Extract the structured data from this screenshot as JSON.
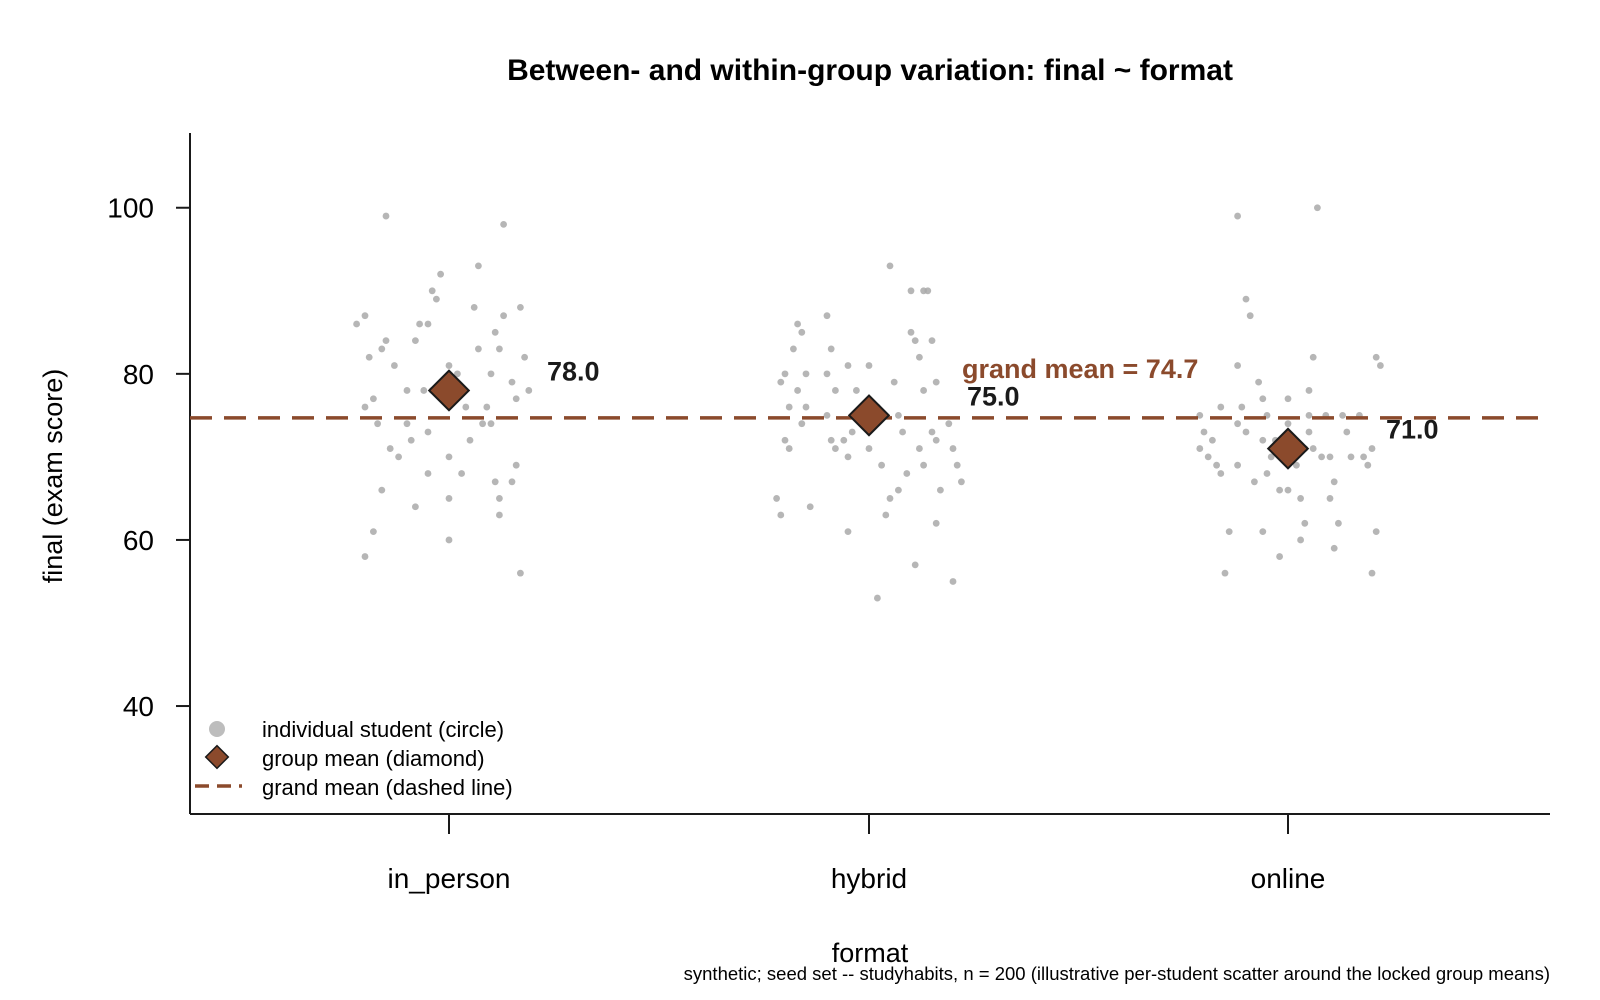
{
  "chart_data": {
    "type": "scatter",
    "title": "Between- and within-group variation: final ~ format",
    "xlabel": "format",
    "ylabel": "final (exam score)",
    "categories": [
      "in_person",
      "hybrid",
      "online"
    ],
    "y_ticks": [
      "40",
      "60",
      "80",
      "100"
    ],
    "ylim": [
      27,
      109
    ],
    "group_means": [
      78.0,
      75.0,
      71.0
    ],
    "group_mean_labels": [
      "78.0",
      "75.0",
      "71.0"
    ],
    "grand_mean": 74.7,
    "grand_mean_label": "grand mean = 74.7",
    "points": [
      [
        [
          -0.2,
          87
        ],
        [
          -0.22,
          86
        ],
        [
          -0.19,
          82
        ],
        [
          -0.18,
          77
        ],
        [
          -0.2,
          76
        ],
        [
          -0.15,
          84
        ],
        [
          -0.16,
          83
        ],
        [
          -0.13,
          81
        ],
        [
          -0.12,
          70
        ],
        [
          -0.14,
          71
        ],
        [
          -0.17,
          74
        ],
        [
          -0.16,
          66
        ],
        [
          -0.18,
          61
        ],
        [
          -0.2,
          58
        ],
        [
          -0.15,
          99
        ],
        [
          -0.1,
          78
        ],
        [
          -0.08,
          84
        ],
        [
          -0.05,
          86
        ],
        [
          -0.06,
          78
        ],
        [
          -0.09,
          72
        ],
        [
          -0.1,
          74
        ],
        [
          -0.08,
          64
        ],
        [
          -0.05,
          68
        ],
        [
          -0.02,
          92
        ],
        [
          -0.04,
          90
        ],
        [
          -0.03,
          89
        ],
        [
          -0.04,
          78
        ],
        [
          -0.05,
          73
        ],
        [
          0.0,
          81
        ],
        [
          0.0,
          70
        ],
        [
          0.02,
          80
        ],
        [
          0.01,
          77
        ],
        [
          0.0,
          65
        ],
        [
          0.0,
          60
        ],
        [
          0.04,
          76
        ],
        [
          0.05,
          72
        ],
        [
          0.03,
          68
        ],
        [
          0.06,
          88
        ],
        [
          0.07,
          83
        ],
        [
          0.08,
          74
        ],
        [
          0.07,
          93
        ],
        [
          0.1,
          80
        ],
        [
          0.11,
          85
        ],
        [
          0.13,
          87
        ],
        [
          0.12,
          83
        ],
        [
          0.11,
          67
        ],
        [
          0.12,
          65
        ],
        [
          0.12,
          63
        ],
        [
          0.1,
          74
        ],
        [
          0.09,
          76
        ],
        [
          0.13,
          98
        ],
        [
          0.15,
          79
        ],
        [
          0.16,
          77
        ],
        [
          0.15,
          67
        ],
        [
          0.17,
          88
        ],
        [
          0.18,
          82
        ],
        [
          0.19,
          78
        ],
        [
          0.17,
          56
        ],
        [
          0.16,
          69
        ],
        [
          -0.07,
          86
        ]
      ],
      [
        [
          -0.2,
          80
        ],
        [
          -0.21,
          79
        ],
        [
          -0.19,
          76
        ],
        [
          -0.2,
          72
        ],
        [
          -0.19,
          71
        ],
        [
          -0.22,
          65
        ],
        [
          -0.21,
          63
        ],
        [
          -0.17,
          86
        ],
        [
          -0.16,
          85
        ],
        [
          -0.18,
          83
        ],
        [
          -0.15,
          80
        ],
        [
          -0.17,
          78
        ],
        [
          -0.15,
          76
        ],
        [
          -0.16,
          74
        ],
        [
          -0.14,
          64
        ],
        [
          -0.1,
          87
        ],
        [
          -0.09,
          83
        ],
        [
          -0.1,
          80
        ],
        [
          -0.08,
          78
        ],
        [
          -0.1,
          75
        ],
        [
          -0.06,
          72
        ],
        [
          -0.08,
          71
        ],
        [
          -0.05,
          70
        ],
        [
          -0.05,
          81
        ],
        [
          -0.03,
          78
        ],
        [
          -0.04,
          73
        ],
        [
          -0.09,
          72
        ],
        [
          -0.05,
          61
        ],
        [
          0.0,
          81
        ],
        [
          0.0,
          71
        ],
        [
          0.02,
          76
        ],
        [
          0.03,
          69
        ],
        [
          0.05,
          65
        ],
        [
          0.04,
          63
        ],
        [
          0.02,
          53
        ],
        [
          0.06,
          79
        ],
        [
          0.07,
          75
        ],
        [
          0.08,
          73
        ],
        [
          0.07,
          66
        ],
        [
          0.09,
          68
        ],
        [
          0.05,
          93
        ],
        [
          0.1,
          85
        ],
        [
          0.11,
          84
        ],
        [
          0.12,
          82
        ],
        [
          0.13,
          78
        ],
        [
          0.12,
          71
        ],
        [
          0.13,
          69
        ],
        [
          0.11,
          57
        ],
        [
          0.1,
          90
        ],
        [
          0.13,
          90
        ],
        [
          0.14,
          90
        ],
        [
          0.15,
          84
        ],
        [
          0.16,
          79
        ],
        [
          0.15,
          73
        ],
        [
          0.16,
          72
        ],
        [
          0.17,
          66
        ],
        [
          0.16,
          62
        ],
        [
          0.2,
          71
        ],
        [
          0.21,
          69
        ],
        [
          0.2,
          55
        ],
        [
          0.19,
          74
        ],
        [
          0.22,
          67
        ]
      ],
      [
        [
          -0.21,
          75
        ],
        [
          -0.2,
          73
        ],
        [
          -0.21,
          71
        ],
        [
          -0.19,
          70
        ],
        [
          -0.18,
          72
        ],
        [
          -0.16,
          76
        ],
        [
          -0.17,
          69
        ],
        [
          -0.16,
          68
        ],
        [
          -0.14,
          61
        ],
        [
          -0.15,
          56
        ],
        [
          -0.12,
          81
        ],
        [
          -0.11,
          76
        ],
        [
          -0.12,
          74
        ],
        [
          -0.1,
          73
        ],
        [
          -0.12,
          69
        ],
        [
          -0.1,
          89
        ],
        [
          -0.09,
          87
        ],
        [
          -0.12,
          99
        ],
        [
          -0.07,
          79
        ],
        [
          -0.06,
          77
        ],
        [
          -0.05,
          75
        ],
        [
          -0.06,
          72
        ],
        [
          -0.08,
          67
        ],
        [
          -0.04,
          70
        ],
        [
          -0.05,
          68
        ],
        [
          -0.06,
          61
        ],
        [
          -0.03,
          72
        ],
        [
          -0.02,
          71
        ],
        [
          -0.02,
          66
        ],
        [
          -0.02,
          58
        ],
        [
          0.0,
          74
        ],
        [
          0.0,
          77
        ],
        [
          0.0,
          70
        ],
        [
          0.0,
          66
        ],
        [
          0.02,
          69
        ],
        [
          0.04,
          71
        ],
        [
          0.05,
          73
        ],
        [
          0.03,
          65
        ],
        [
          0.04,
          62
        ],
        [
          0.03,
          60
        ],
        [
          0.05,
          78
        ],
        [
          0.06,
          82
        ],
        [
          0.05,
          75
        ],
        [
          0.06,
          71
        ],
        [
          0.08,
          70
        ],
        [
          0.07,
          100
        ],
        [
          0.09,
          75
        ],
        [
          0.1,
          70
        ],
        [
          0.11,
          67
        ],
        [
          0.1,
          65
        ],
        [
          0.12,
          62
        ],
        [
          0.11,
          59
        ],
        [
          0.13,
          75
        ],
        [
          0.14,
          73
        ],
        [
          0.15,
          70
        ],
        [
          0.17,
          75
        ],
        [
          0.18,
          70
        ],
        [
          0.19,
          69
        ],
        [
          0.2,
          71
        ],
        [
          0.21,
          82
        ],
        [
          0.22,
          81
        ],
        [
          0.21,
          61
        ],
        [
          0.2,
          56
        ]
      ]
    ]
  },
  "legend": {
    "position": "bottom-left",
    "items": [
      {
        "label": "individual student (circle)",
        "marker": "circle"
      },
      {
        "label": "group mean (diamond)",
        "marker": "diamond"
      },
      {
        "label": "grand mean (dashed line)",
        "marker": "dashed-line"
      }
    ]
  },
  "footnote": "synthetic; seed set -- studyhabits, n = 200 (illustrative per-student scatter around the locked group means)",
  "colors": {
    "mean": "#8b4a2c",
    "mean_stroke": "#1a1a1a",
    "point": "#a9a9a9",
    "grand_mean_text": "#8b4a2c",
    "axis": "#1a1a1a"
  }
}
